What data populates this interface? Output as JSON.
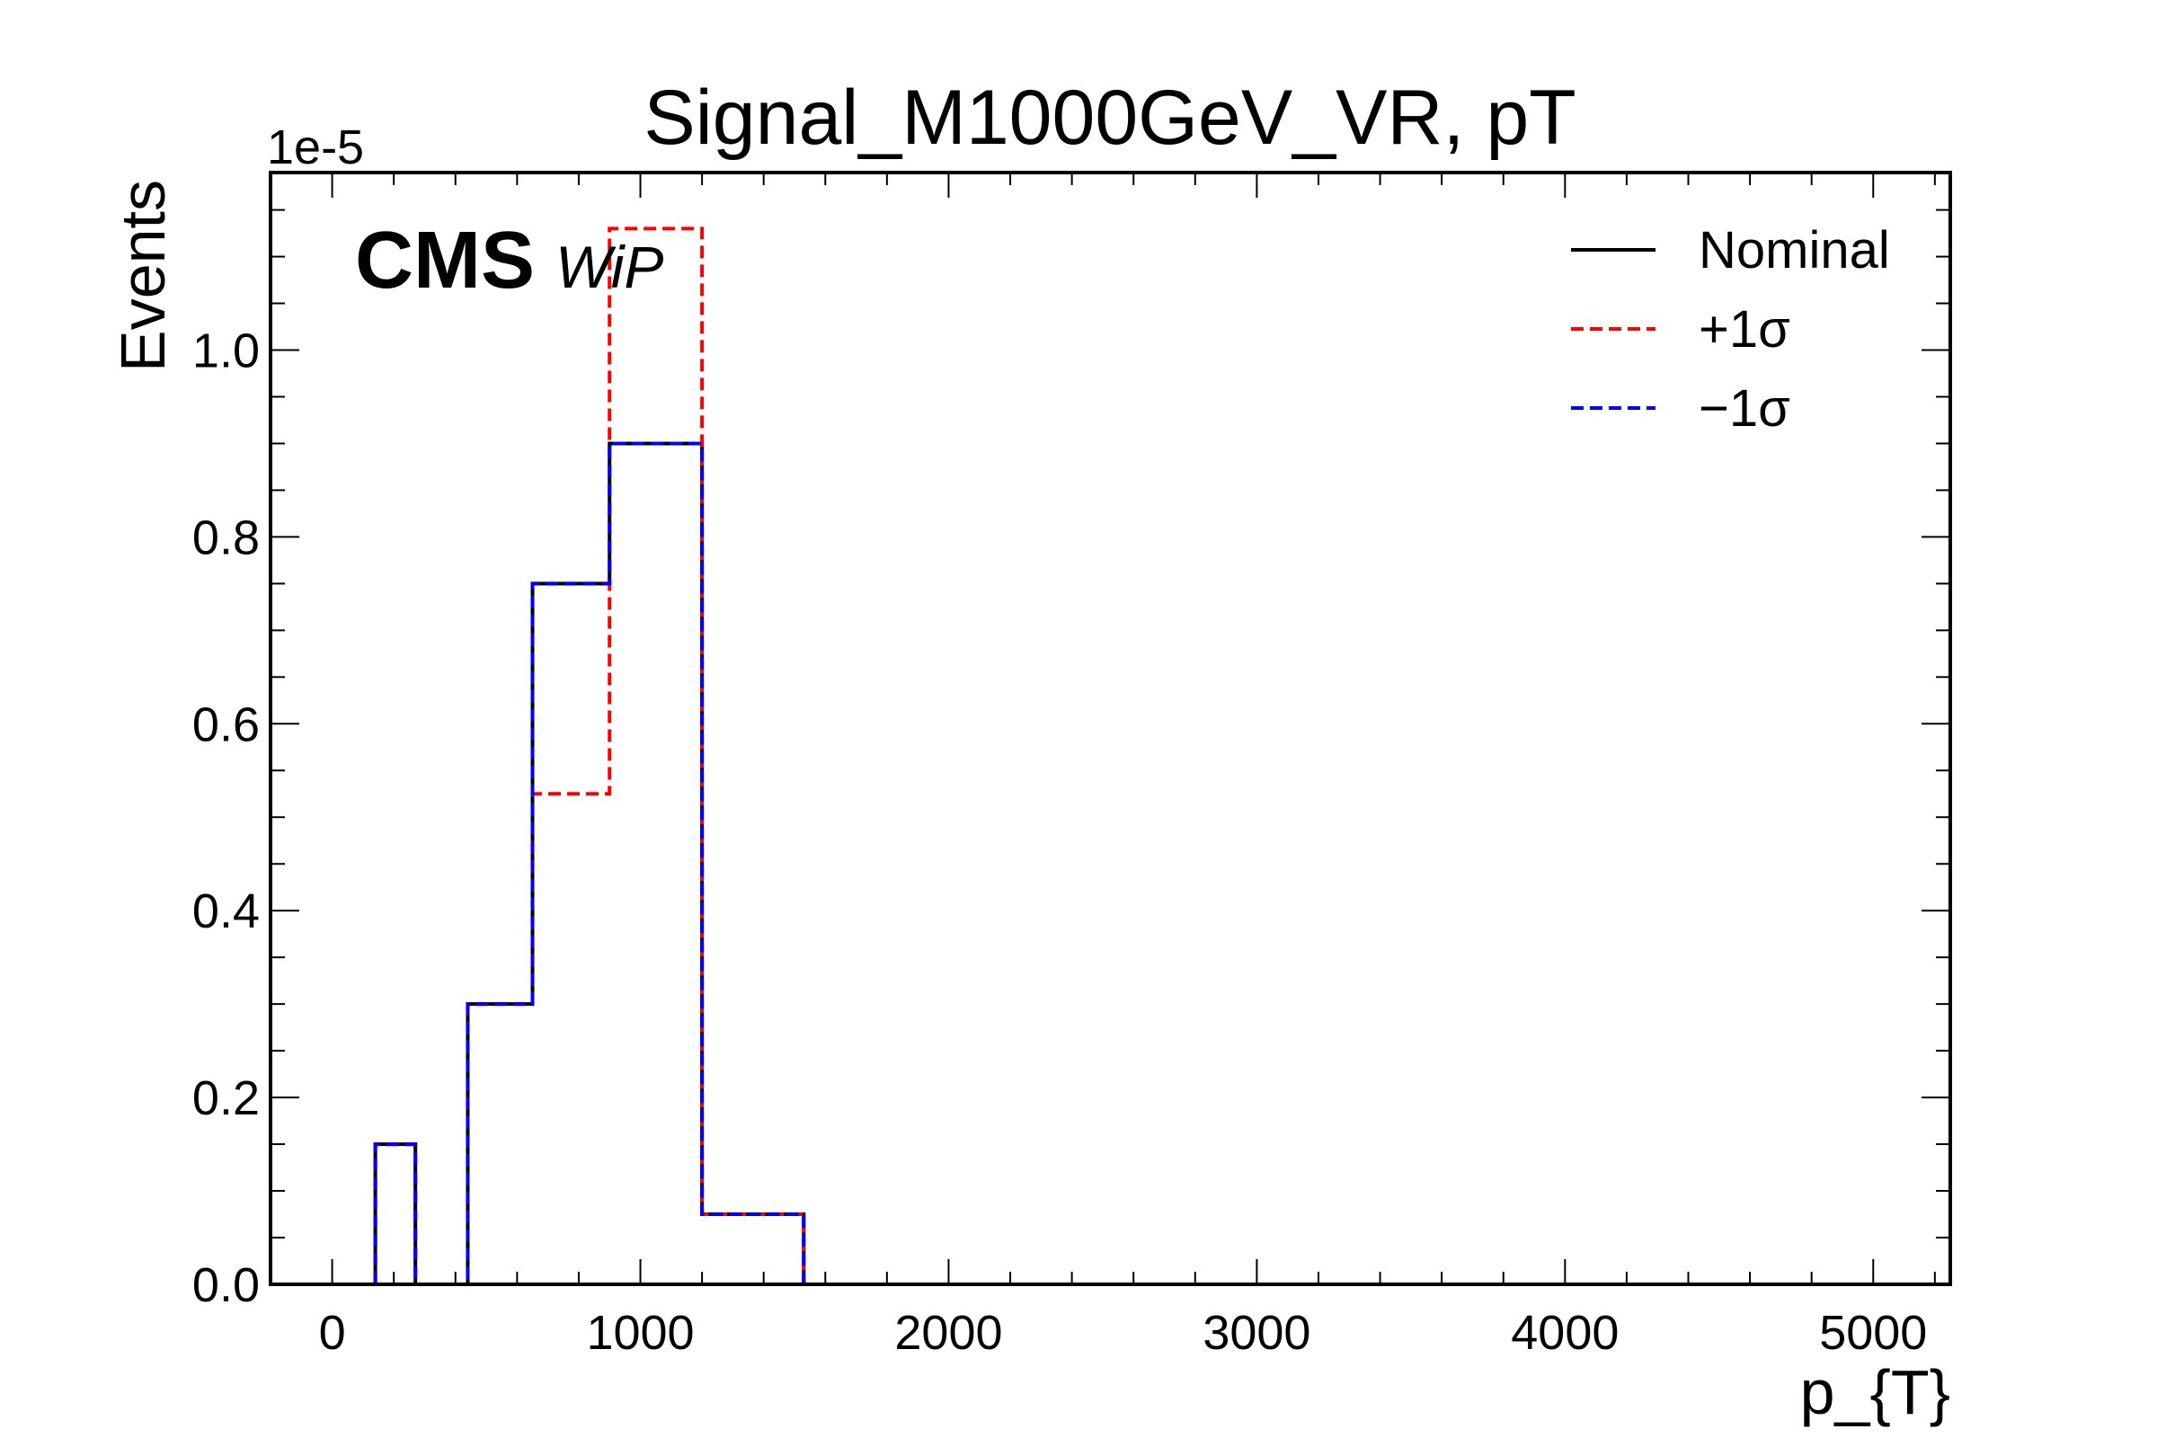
{
  "chart_data": {
    "type": "step",
    "title": "Signal_M1000GeV_VR, pT",
    "xlabel": "p_{T}",
    "ylabel": "Events",
    "y_multiplier_label": "1e-5",
    "y_multiplier": 1e-05,
    "xlim": [
      -200,
      5250
    ],
    "ylim": [
      0,
      1.19
    ],
    "x_ticks": [
      0,
      1000,
      2000,
      3000,
      4000,
      5000
    ],
    "x_tick_labels": [
      "0",
      "1000",
      "2000",
      "3000",
      "4000",
      "5000"
    ],
    "y_ticks": [
      0.0,
      0.2,
      0.4,
      0.6,
      0.8,
      1.0
    ],
    "y_tick_labels": [
      "0.0",
      "0.2",
      "0.4",
      "0.6",
      "0.8",
      "1.0"
    ],
    "grid": false,
    "legend_position": "top-right",
    "experiment_label": "CMS",
    "status_label": "WiP",
    "bin_edges": [
      140,
      270,
      440,
      650,
      900,
      1200,
      1530
    ],
    "series": [
      {
        "name": "Nominal",
        "color": "#000000",
        "style": "solid",
        "values": [
          0.15,
          0.0,
          0.3,
          0.75,
          0.9,
          0.075
        ]
      },
      {
        "name": "+1σ",
        "color": "#ff0000",
        "style": "dashed",
        "values": [
          0.15,
          0.0,
          0.3,
          0.525,
          1.13,
          0.075
        ]
      },
      {
        "name": "−1σ",
        "color": "#0000ff",
        "style": "dashed",
        "values": [
          0.15,
          0.0,
          0.3,
          0.75,
          0.9,
          0.075
        ]
      }
    ]
  }
}
